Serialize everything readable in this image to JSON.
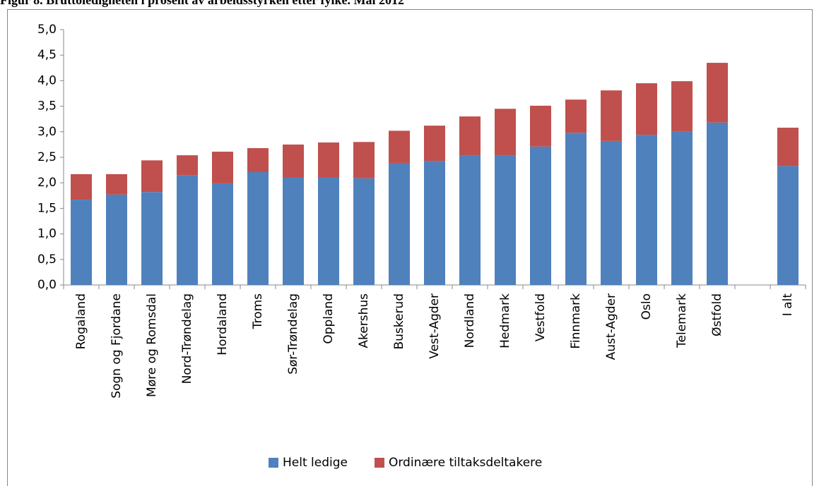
{
  "chart_data": {
    "type": "stacked-bar",
    "title": "Figur 8. Bruttoledigheten i prosent av arbeidsstyrken etter fylke. Mai 2012",
    "categories": [
      "Rogaland",
      "Sogn og Fjordane",
      "Møre og Romsdal",
      "Nord-Trøndelag",
      "Hordaland",
      "Troms",
      "Sør-Trøndelag",
      "Oppland",
      "Akershus",
      "Buskerud",
      "Vest-Agder",
      "Nordland",
      "Hedmark",
      "Vestfold",
      "Finnmark",
      "Aust-Agder",
      "Oslo",
      "Telemark",
      "Østfold",
      null,
      "I alt"
    ],
    "series": [
      {
        "name": "Helt ledige",
        "color": "#4f81bd",
        "values": [
          1.67,
          1.77,
          1.82,
          2.15,
          1.99,
          2.21,
          2.1,
          2.1,
          2.09,
          2.39,
          2.43,
          2.54,
          2.54,
          2.71,
          2.98,
          2.82,
          2.94,
          3.0,
          3.18,
          null,
          2.33
        ]
      },
      {
        "name": "Ordinære tiltaksdeltakere",
        "color": "#c0504d",
        "values": [
          0.5,
          0.4,
          0.62,
          0.39,
          0.62,
          0.47,
          0.65,
          0.69,
          0.71,
          0.63,
          0.69,
          0.76,
          0.91,
          0.8,
          0.65,
          0.99,
          1.01,
          0.99,
          1.17,
          null,
          0.75
        ]
      }
    ],
    "ylim": [
      0,
      5
    ],
    "yticks": [
      {
        "value": 0,
        "label": "0,0"
      },
      {
        "value": 0.5,
        "label": "0,5"
      },
      {
        "value": 1,
        "label": "1,0"
      },
      {
        "value": 1.5,
        "label": "1,5"
      },
      {
        "value": 2,
        "label": "2,0"
      },
      {
        "value": 2.5,
        "label": "2,5"
      },
      {
        "value": 3,
        "label": "3,0"
      },
      {
        "value": 3.5,
        "label": "3,5"
      },
      {
        "value": 4,
        "label": "4,0"
      },
      {
        "value": 4.5,
        "label": "4,5"
      },
      {
        "value": 5,
        "label": "5,0"
      }
    ],
    "legend": "bottom"
  }
}
